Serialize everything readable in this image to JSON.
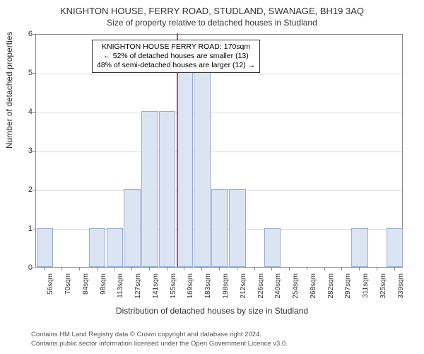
{
  "title": "KNIGHTON HOUSE, FERRY ROAD, STUDLAND, SWANAGE, BH19 3AQ",
  "subtitle": "Size of property relative to detached houses in Studland",
  "ylabel": "Number of detached properties",
  "xlabel": "Distribution of detached houses by size in Studland",
  "chart": {
    "type": "bar",
    "ylim": [
      0,
      6
    ],
    "yticks": [
      0,
      1,
      2,
      3,
      4,
      5,
      6
    ],
    "xticks": [
      "56sqm",
      "70sqm",
      "84sqm",
      "98sqm",
      "113sqm",
      "127sqm",
      "141sqm",
      "155sqm",
      "169sqm",
      "183sqm",
      "198sqm",
      "212sqm",
      "226sqm",
      "240sqm",
      "254sqm",
      "268sqm",
      "282sqm",
      "297sqm",
      "311sqm",
      "325sqm",
      "339sqm"
    ],
    "values": [
      1,
      0,
      0,
      1,
      1,
      2,
      4,
      4,
      5,
      5,
      2,
      2,
      0,
      1,
      0,
      0,
      0,
      0,
      1,
      0,
      1
    ],
    "bar_fill": "#dbe4f3",
    "bar_border": "#9aaed0",
    "background": "#ffffff",
    "grid_color": "#d8d8d8",
    "axis_color": "#888888",
    "marker_color": "#d04060",
    "marker_index": 8,
    "bar_width_ratio": 0.95
  },
  "info_box": {
    "line1": "KNIGHTON HOUSE FERRY ROAD: 170sqm",
    "line2": "← 52% of detached houses are smaller (13)",
    "line3": "48% of semi-detached houses are larger (12) →"
  },
  "footer": {
    "line1": "Contains HM Land Registry data © Crown copyright and database right 2024.",
    "line2": "Contains public sector information licensed under the Open Government Licence v3.0."
  }
}
